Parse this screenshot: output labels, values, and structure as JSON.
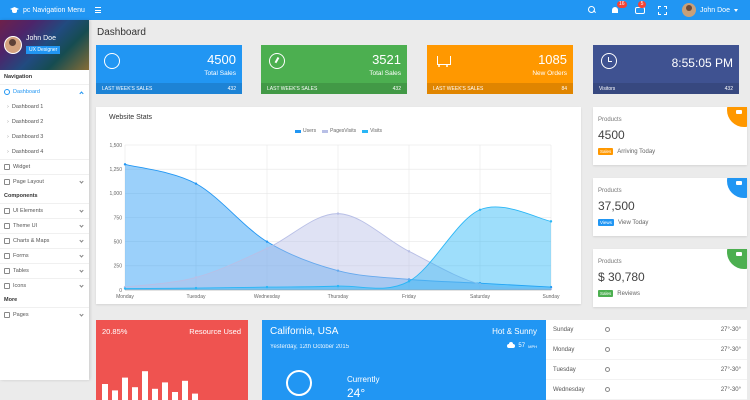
{
  "topbar": {
    "brand": "pc Navigation Menu",
    "notif_count": "16",
    "msg_count": "5",
    "user_name": "John Doe"
  },
  "sidebar": {
    "user_name": "John Doe",
    "user_role": "UX Designer",
    "nav_header": "Navigation",
    "dashboard_label": "Dashboard",
    "sub_items": [
      "Dashboard 1",
      "Dashboard 2",
      "Dashboard 3",
      "Dashboard 4"
    ],
    "items_a": [
      "Widget",
      "Page Layout"
    ],
    "components_header": "Components",
    "items_b": [
      "UI Elements",
      "Theme UI",
      "Charts & Maps",
      "Forms",
      "Tables",
      "Icons"
    ],
    "more_header": "More",
    "items_c": [
      "Pages"
    ]
  },
  "page": {
    "title": "Dashboard"
  },
  "cards": [
    {
      "value": "4500",
      "label": "Total Sales",
      "foot_label": "LAST WEEK'S SALES",
      "foot_value": "432",
      "color": "#2196f3",
      "icon": "chat-icon"
    },
    {
      "value": "3521",
      "label": "Total Sales",
      "foot_label": "LAST WEEK'S SALES",
      "foot_value": "432",
      "color": "#4caf50",
      "icon": "gauge-icon"
    },
    {
      "value": "1085",
      "label": "New Orders",
      "foot_label": "LAST WEEK'S SALES",
      "foot_value": "84",
      "color": "#ff9800",
      "icon": "cart-icon"
    },
    {
      "value": "8:55:05 PM",
      "foot_label": "Visitors",
      "foot_value": "432",
      "color": "#3f5291",
      "icon": "clock-icon"
    }
  ],
  "chart_data": {
    "type": "area",
    "title": "Website Stats",
    "categories": [
      "Monday",
      "Tuesday",
      "Wednesday",
      "Thursday",
      "Friday",
      "Saturday",
      "Sunday"
    ],
    "ylim": [
      0,
      1500
    ],
    "yticks": [
      "0",
      "250",
      "500",
      "750",
      "1,000",
      "1,250",
      "1,500"
    ],
    "series": [
      {
        "name": "Users",
        "values": [
          1300,
          1100,
          500,
          200,
          110,
          70,
          30
        ],
        "color": "#2196f3"
      },
      {
        "name": "PagesVisits",
        "values": [
          30,
          130,
          430,
          790,
          400,
          60,
          10
        ],
        "color": "#b8bfe6"
      },
      {
        "name": "Visits",
        "values": [
          15,
          20,
          30,
          40,
          90,
          830,
          710
        ],
        "color": "#29b6f6"
      }
    ],
    "grid": true,
    "legend": "top-center"
  },
  "products": [
    {
      "title": "Products",
      "value": "4500",
      "badge": "Sales",
      "badge_color": "#ff9800",
      "note": "Arriving Today",
      "corner_color": "#ff9800"
    },
    {
      "title": "Products",
      "value": "37,500",
      "badge": "Views",
      "badge_color": "#2196f3",
      "note": "View Today",
      "corner_color": "#2196f3"
    },
    {
      "title": "Products",
      "value": "$ 30,780",
      "badge": "Sales",
      "badge_color": "#4caf50",
      "note": "Reviews",
      "corner_color": "#4caf50"
    }
  ],
  "resource": {
    "percent": "20.85%",
    "label": "Resource Used",
    "bars": [
      0.5,
      0.3,
      0.7,
      0.4,
      0.9,
      0.35,
      0.55,
      0.25,
      0.6,
      0.2
    ]
  },
  "weather": {
    "city": "California, USA",
    "date": "Yesterday, 12th October 2015",
    "condition": "Hot & Sunny",
    "wind": "57",
    "wind_unit": "MPH",
    "current_label": "Currently",
    "temp": "24°"
  },
  "forecast": [
    {
      "day": "Sunday",
      "temp": "27°-30°"
    },
    {
      "day": "Monday",
      "temp": "27°-30°"
    },
    {
      "day": "Tuesday",
      "temp": "27°-30°"
    },
    {
      "day": "Wednesday",
      "temp": "27°-30°"
    }
  ]
}
